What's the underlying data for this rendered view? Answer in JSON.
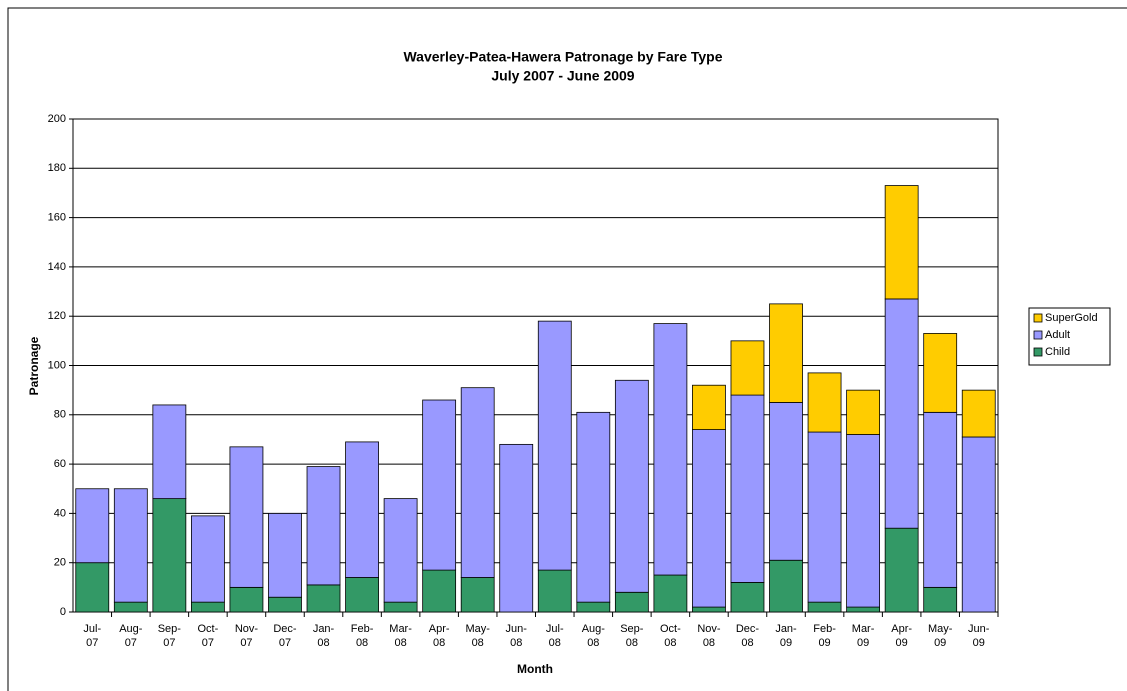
{
  "chart_data": {
    "type": "stacked_bar",
    "title": "Waverley-Patea-Hawera Patronage by Fare Type",
    "subtitle": "July 2007 - June 2009",
    "x_label": "Month",
    "y_label": "Patronage",
    "categories": [
      "Jul-07",
      "Aug-07",
      "Sep-07",
      "Oct-07",
      "Nov-07",
      "Dec-07",
      "Jan-08",
      "Feb-08",
      "Mar-08",
      "Apr-08",
      "May-08",
      "Jun-08",
      "Jul-08",
      "Aug-08",
      "Sep-08",
      "Oct-08",
      "Nov-08",
      "Dec-08",
      "Jan-09",
      "Feb-09",
      "Mar-09",
      "Apr-09",
      "May-09",
      "Jun-09"
    ],
    "series": [
      {
        "name": "Child",
        "color": "#339966",
        "values": [
          20,
          4,
          46,
          4,
          10,
          6,
          11,
          14,
          4,
          17,
          14,
          0,
          17,
          4,
          8,
          15,
          2,
          12,
          21,
          4,
          2,
          34,
          10,
          0
        ]
      },
      {
        "name": "Adult",
        "color": "#9999ff",
        "values": [
          30,
          46,
          38,
          35,
          57,
          34,
          48,
          55,
          42,
          69,
          77,
          68,
          101,
          77,
          86,
          102,
          72,
          76,
          64,
          69,
          70,
          93,
          71,
          71
        ]
      },
      {
        "name": "SuperGold",
        "color": "#ffcc00",
        "values": [
          0,
          0,
          0,
          0,
          0,
          0,
          0,
          0,
          0,
          0,
          0,
          0,
          0,
          0,
          0,
          0,
          18,
          22,
          40,
          24,
          18,
          46,
          32,
          19
        ]
      }
    ],
    "ylim": [
      0,
      200
    ],
    "yticks": [
      0,
      20,
      40,
      60,
      80,
      100,
      120,
      140,
      160,
      180,
      200
    ],
    "grid": true,
    "legend": "right"
  }
}
